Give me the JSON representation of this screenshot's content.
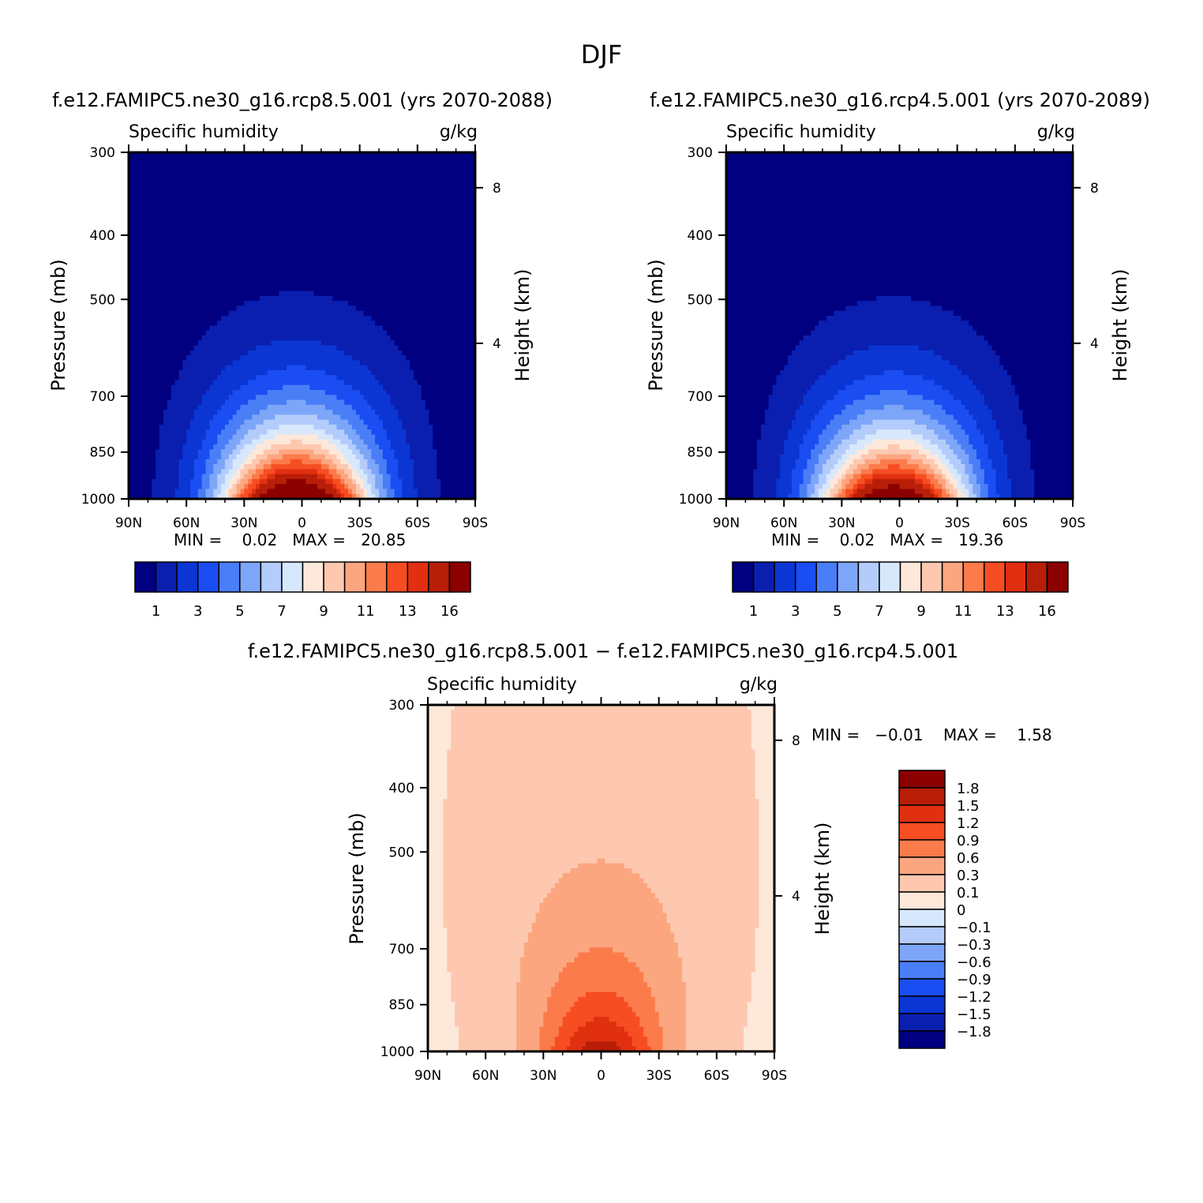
{
  "title": "DJF",
  "colors": {
    "abs_palette": [
      "#000080",
      "#0a1fb0",
      "#0b36d4",
      "#1a4df2",
      "#4a7ef7",
      "#7da6f9",
      "#b3ccfb",
      "#d8e8fc",
      "#fde8da",
      "#fdc8af",
      "#fca680",
      "#fb7b4b",
      "#f74d22",
      "#e03010",
      "#b81e08",
      "#8b0000"
    ],
    "diff_palette": [
      "#000080",
      "#0a1fb0",
      "#0b36d4",
      "#1a4df2",
      "#4a7ef7",
      "#7da6f9",
      "#b3ccfb",
      "#d8e8fc",
      "#fde8da",
      "#fdc8af",
      "#fca680",
      "#fb7b4b",
      "#f74d22",
      "#e03010",
      "#b81e08",
      "#8b0000"
    ]
  },
  "chart_data": [
    {
      "type": "heatmap",
      "title": "f.e12.FAMIPC5.ne30_g16.rcp8.5.001 (yrs 2070-2088)",
      "left_label": "Specific humidity",
      "right_label": "g/kg",
      "xlabel": "",
      "ylabel": "Pressure (mb)",
      "y2label": "Height (km)",
      "xticks": [
        "90N",
        "60N",
        "30N",
        "0",
        "30S",
        "60S",
        "90S"
      ],
      "yticks": [
        "300",
        "400",
        "500",
        "700",
        "850",
        "1000"
      ],
      "y2ticks": [
        "8",
        "4"
      ],
      "ylim": [
        1000,
        300
      ],
      "min_max": "MIN =    0.02   MAX =   20.85",
      "levels": [
        1,
        2,
        3,
        4,
        5,
        6,
        7,
        8,
        9,
        10,
        11,
        12,
        13,
        14,
        16
      ],
      "colorbar_labels": [
        "1",
        "3",
        "5",
        "7",
        "9",
        "11",
        "13",
        "16"
      ],
      "peak": 20.85,
      "min": 0.02
    },
    {
      "type": "heatmap",
      "title": "f.e12.FAMIPC5.ne30_g16.rcp4.5.001 (yrs 2070-2089)",
      "left_label": "Specific humidity",
      "right_label": "g/kg",
      "xlabel": "",
      "ylabel": "Pressure (mb)",
      "y2label": "Height (km)",
      "xticks": [
        "90N",
        "60N",
        "30N",
        "0",
        "30S",
        "60S",
        "90S"
      ],
      "yticks": [
        "300",
        "400",
        "500",
        "700",
        "850",
        "1000"
      ],
      "y2ticks": [
        "8",
        "4"
      ],
      "ylim": [
        1000,
        300
      ],
      "min_max": "MIN =    0.02   MAX =   19.36",
      "levels": [
        1,
        2,
        3,
        4,
        5,
        6,
        7,
        8,
        9,
        10,
        11,
        12,
        13,
        14,
        16
      ],
      "colorbar_labels": [
        "1",
        "3",
        "5",
        "7",
        "9",
        "11",
        "13",
        "16"
      ],
      "peak": 19.36,
      "min": 0.02
    },
    {
      "type": "heatmap",
      "title": "f.e12.FAMIPC5.ne30_g16.rcp8.5.001 − f.e12.FAMIPC5.ne30_g16.rcp4.5.001",
      "left_label": "Specific humidity",
      "right_label": "g/kg",
      "xlabel": "",
      "ylabel": "Pressure (mb)",
      "y2label": "Height (km)",
      "xticks": [
        "90N",
        "60N",
        "30N",
        "0",
        "30S",
        "60S",
        "90S"
      ],
      "yticks": [
        "300",
        "400",
        "500",
        "700",
        "850",
        "1000"
      ],
      "y2ticks": [
        "8",
        "4"
      ],
      "ylim": [
        1000,
        300
      ],
      "min_max": "MIN =   −0.01    MAX =    1.58",
      "levels": [
        -1.8,
        -1.5,
        -1.2,
        -0.9,
        -0.6,
        -0.3,
        -0.1,
        0,
        0.1,
        0.3,
        0.6,
        0.9,
        1.2,
        1.5,
        1.8
      ],
      "colorbar_labels": [
        "1.8",
        "1.5",
        "1.2",
        "0.9",
        "0.6",
        "0.3",
        "0.1",
        "0",
        "−0.1",
        "−0.3",
        "−0.6",
        "−0.9",
        "−1.2",
        "−1.5",
        "−1.8"
      ],
      "peak": 1.58,
      "min": -0.01
    }
  ]
}
